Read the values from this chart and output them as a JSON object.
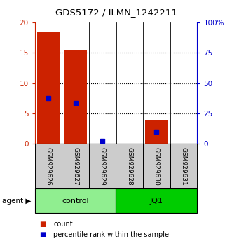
{
  "title": "GDS5172 / ILMN_1242211",
  "samples": [
    "GSM929626",
    "GSM929627",
    "GSM929629",
    "GSM929628",
    "GSM929630",
    "GSM929631"
  ],
  "count_values": [
    18.5,
    15.5,
    0.0,
    0.0,
    4.0,
    0.0
  ],
  "percentile_values": [
    37.5,
    33.5,
    2.5,
    0.0,
    10.0,
    0.0
  ],
  "groups": [
    {
      "label": "control",
      "indices": [
        0,
        1,
        2
      ],
      "color": "#90EE90"
    },
    {
      "label": "JQ1",
      "indices": [
        3,
        4,
        5
      ],
      "color": "#00CC00"
    }
  ],
  "left_ylim": [
    0,
    20
  ],
  "right_ylim": [
    0,
    100
  ],
  "left_yticks": [
    0,
    5,
    10,
    15,
    20
  ],
  "right_yticks": [
    0,
    25,
    50,
    75,
    100
  ],
  "right_yticklabels": [
    "0",
    "25",
    "50",
    "75",
    "100%"
  ],
  "left_color": "#CC2200",
  "right_color": "#0000CC",
  "bar_color": "#CC2200",
  "percentile_color": "#0000CC",
  "label_area_color": "#cccccc",
  "bar_width": 0.85,
  "dotted_lines": [
    5,
    10,
    15
  ]
}
